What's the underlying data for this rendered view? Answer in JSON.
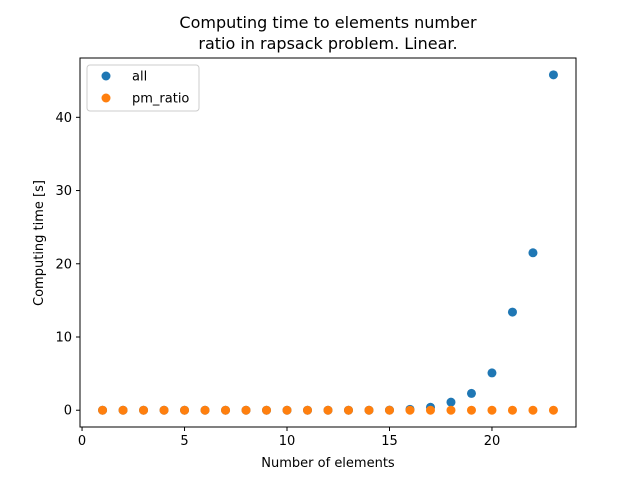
{
  "chart_data": {
    "type": "scatter",
    "title_lines": [
      "Computing time to elements number",
      "ratio in rapsack problem. Linear."
    ],
    "xlabel": "Number of elements",
    "ylabel": "Computing time [s]",
    "xlim": [
      -0.1,
      24.1
    ],
    "ylim": [
      -2.29,
      48.1
    ],
    "xticks": [
      0,
      5,
      10,
      15,
      20
    ],
    "yticks": [
      0,
      10,
      20,
      30,
      40
    ],
    "grid": false,
    "legend_position": "top-left",
    "x": [
      1,
      2,
      3,
      4,
      5,
      6,
      7,
      8,
      9,
      10,
      11,
      12,
      13,
      14,
      15,
      16,
      17,
      18,
      19,
      20,
      21,
      22,
      23
    ],
    "series": [
      {
        "name": "all",
        "color": "#1f77b4",
        "values": [
          0,
          0,
          0,
          0,
          0,
          0,
          0,
          0,
          0,
          0,
          0,
          0,
          0,
          0,
          0.02,
          0.12,
          0.4,
          1.1,
          2.3,
          5.1,
          13.4,
          21.5,
          45.8
        ]
      },
      {
        "name": "pm_ratio",
        "color": "#ff7f0e",
        "values": [
          0,
          0,
          0,
          0,
          0,
          0,
          0,
          0,
          0,
          0,
          0,
          0,
          0,
          0,
          0,
          0,
          0,
          0,
          0,
          0,
          0,
          0,
          0
        ]
      }
    ]
  }
}
